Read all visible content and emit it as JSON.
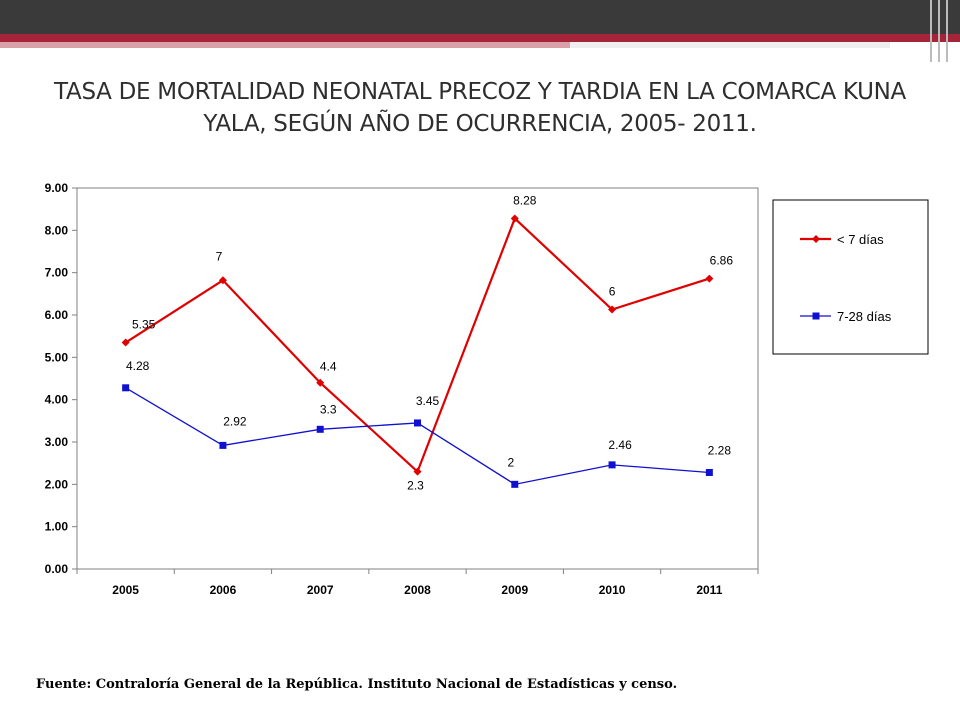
{
  "slide": {
    "title": "TASA DE MORTALIDAD NEONATAL PRECOZ Y TARDIA EN LA COMARCA  KUNA YALA, SEGÚN AÑO DE OCURRENCIA, 2005- 2011.",
    "source": "Fuente: Contraloría General de la República. Instituto Nacional de Estadísticas y censo."
  },
  "colors": {
    "series_1": "#e00000",
    "series_2": "#1010d0",
    "bar": "#3a3a3a",
    "accent": "#a5243a"
  },
  "chart_data": {
    "type": "line",
    "categories": [
      "2005",
      "2006",
      "2007",
      "2008",
      "2009",
      "2010",
      "2011"
    ],
    "ylim": [
      0,
      9
    ],
    "yticks": [
      "0.00",
      "1.00",
      "2.00",
      "3.00",
      "4.00",
      "5.00",
      "6.00",
      "7.00",
      "8.00",
      "9.00"
    ],
    "grid": false,
    "legend_position": "right",
    "xlabel": "",
    "ylabel": "",
    "series": [
      {
        "name": "< 7 días",
        "marker": "diamond",
        "values": [
          5.35,
          6.82,
          4.4,
          2.3,
          8.28,
          6.13,
          6.86
        ],
        "labels": [
          "5.35",
          "7",
          "4.4",
          "2.3",
          "8.28",
          "6",
          "6.86"
        ]
      },
      {
        "name": "7-28 días",
        "marker": "square",
        "values": [
          4.28,
          2.92,
          3.3,
          3.45,
          2.0,
          2.46,
          2.28
        ],
        "labels": [
          "4.28",
          "2.92",
          "3.3",
          "3.45",
          "2",
          "2.46",
          "2.28"
        ]
      }
    ]
  }
}
